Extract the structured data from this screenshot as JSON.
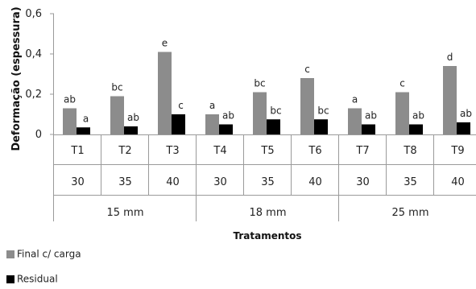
{
  "chart_data": {
    "type": "bar",
    "ylabel": "Deformação (espessura)",
    "xlabel": "Tratamentos",
    "ylim": [
      0,
      0.6
    ],
    "yticks": [
      "0",
      "0,2",
      "0,4",
      "0,6"
    ],
    "ytick_values": [
      0,
      0.2,
      0.4,
      0.6
    ],
    "categories": [
      "T1",
      "T2",
      "T3",
      "T4",
      "T5",
      "T6",
      "T7",
      "T8",
      "T9"
    ],
    "sublabels": [
      "30",
      "35",
      "40",
      "30",
      "35",
      "40",
      "30",
      "35",
      "40"
    ],
    "groups": [
      {
        "label": "15 mm",
        "span": 3
      },
      {
        "label": "18 mm",
        "span": 3
      },
      {
        "label": "25 mm",
        "span": 3
      }
    ],
    "series": [
      {
        "name": "Final c/ carga",
        "color": "#8c8c8c",
        "values": [
          0.13,
          0.19,
          0.41,
          0.1,
          0.21,
          0.28,
          0.13,
          0.21,
          0.34
        ],
        "labels": [
          "ab",
          "bc",
          "e",
          "a",
          "bc",
          "c",
          "a",
          "c",
          "d"
        ]
      },
      {
        "name": "Residual",
        "color": "#000000",
        "values": [
          0.035,
          0.04,
          0.1,
          0.05,
          0.075,
          0.075,
          0.05,
          0.05,
          0.06
        ],
        "labels": [
          "a",
          "ab",
          "c",
          "ab",
          "bc",
          "bc",
          "ab",
          "ab",
          "ab"
        ]
      }
    ],
    "grid": false,
    "legend_position": "bottom-left"
  }
}
